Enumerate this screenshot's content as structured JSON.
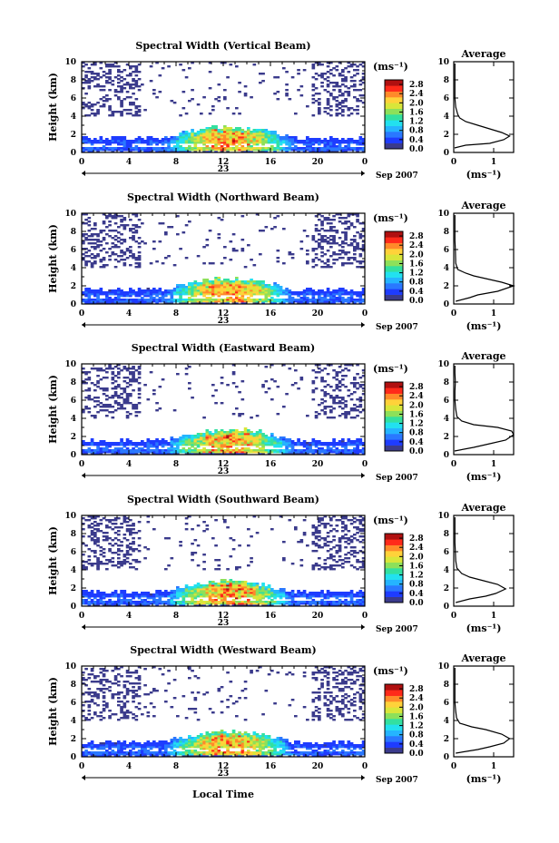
{
  "chart_data": {
    "type": "heatmap",
    "shared": {
      "xlabel": "Local Time",
      "x_ticks": [
        "0",
        "4",
        "8",
        "12",
        "16",
        "20",
        "0"
      ],
      "xlim": [
        0,
        24
      ],
      "day_label": "23",
      "month_label": "Sep 2007",
      "ylabel": "Height (km)",
      "y_ticks": [
        "0",
        "2",
        "4",
        "6",
        "8",
        "10"
      ],
      "ylim": [
        0,
        10
      ],
      "colorbar": {
        "unit_label": "(ms⁻¹)",
        "ticks": [
          "0.0",
          "0.4",
          "0.8",
          "1.2",
          "1.6",
          "2.0",
          "2.4",
          "2.8"
        ],
        "range": [
          0,
          3.0
        ],
        "colors": [
          "#3b3b8c",
          "#1e3cff",
          "#2a78ff",
          "#25b4ff",
          "#22e1ef",
          "#33e0a0",
          "#8de05a",
          "#d9e63a",
          "#ffd23a",
          "#ff8a2a",
          "#ff2a1a",
          "#b01010"
        ]
      },
      "profile_title": "Average",
      "profile_xlabel": "(ms⁻¹)",
      "profile_ylim": [
        0,
        10
      ],
      "profile_y_ticks": [
        "0",
        "2",
        "4",
        "6",
        "8",
        "10"
      ]
    },
    "panels": [
      {
        "title": "Spectral Width (Vertical Beam)",
        "profile_x_ticks": [
          "0",
          "1"
        ],
        "profile_xlim": [
          0,
          1.5
        ],
        "profile": [
          [
            0.02,
            0.5
          ],
          [
            0.3,
            0.8
          ],
          [
            0.9,
            1.0
          ],
          [
            1.25,
            1.4
          ],
          [
            1.4,
            1.8
          ],
          [
            1.2,
            2.2
          ],
          [
            0.9,
            2.6
          ],
          [
            0.6,
            3.0
          ],
          [
            0.3,
            3.4
          ],
          [
            0.15,
            3.8
          ],
          [
            0.1,
            4.2
          ],
          [
            0.05,
            5
          ],
          [
            0.03,
            6
          ],
          [
            0.03,
            7
          ],
          [
            0.03,
            8
          ],
          [
            0.03,
            9
          ],
          [
            0.03,
            9.8
          ]
        ]
      },
      {
        "title": "Spectral Width (Northward Beam)",
        "profile_x_ticks": [
          "0",
          "1"
        ],
        "profile_xlim": [
          0,
          1.5
        ],
        "profile": [
          [
            0.05,
            0.3
          ],
          [
            0.4,
            0.7
          ],
          [
            0.6,
            1.0
          ],
          [
            1.1,
            1.4
          ],
          [
            1.5,
            2.0
          ],
          [
            1.2,
            2.4
          ],
          [
            0.8,
            2.8
          ],
          [
            0.5,
            3.1
          ],
          [
            0.3,
            3.4
          ],
          [
            0.1,
            3.8
          ],
          [
            0.05,
            4.5
          ],
          [
            0.04,
            6
          ],
          [
            0.03,
            7
          ],
          [
            0.03,
            8
          ],
          [
            0.03,
            9
          ],
          [
            0.03,
            9.8
          ]
        ]
      },
      {
        "title": "Spectral Width (Eastward Beam)",
        "profile_x_ticks": [
          "0",
          "1"
        ],
        "profile_xlim": [
          0,
          1.5
        ],
        "profile": [
          [
            0.02,
            0.4
          ],
          [
            0.5,
            0.8
          ],
          [
            0.9,
            1.2
          ],
          [
            1.3,
            1.6
          ],
          [
            1.5,
            2.2
          ],
          [
            1.45,
            2.6
          ],
          [
            1.1,
            3.0
          ],
          [
            0.5,
            3.3
          ],
          [
            0.2,
            3.7
          ],
          [
            0.08,
            4.2
          ],
          [
            0.05,
            5
          ],
          [
            0.03,
            6
          ],
          [
            0.03,
            7
          ],
          [
            0.04,
            8
          ],
          [
            0.03,
            9
          ],
          [
            0.03,
            9.8
          ]
        ]
      },
      {
        "title": "Spectral Width (Southward Beam)",
        "profile_x_ticks": [
          "0",
          "1"
        ],
        "profile_xlim": [
          0,
          1.5
        ],
        "profile": [
          [
            0.05,
            0.4
          ],
          [
            0.4,
            0.8
          ],
          [
            0.8,
            1.1
          ],
          [
            1.05,
            1.4
          ],
          [
            1.3,
            1.9
          ],
          [
            1.1,
            2.4
          ],
          [
            0.75,
            2.8
          ],
          [
            0.4,
            3.2
          ],
          [
            0.2,
            3.6
          ],
          [
            0.08,
            4.2
          ],
          [
            0.05,
            5
          ],
          [
            0.04,
            6
          ],
          [
            0.03,
            7
          ],
          [
            0.03,
            8
          ],
          [
            0.03,
            9
          ],
          [
            0.03,
            9.8
          ]
        ]
      },
      {
        "title": "Spectral Width (Westward Beam)",
        "profile_x_ticks": [
          "0",
          "1"
        ],
        "profile_xlim": [
          0,
          1.5
        ],
        "profile": [
          [
            0.05,
            0.4
          ],
          [
            0.6,
            0.8
          ],
          [
            0.9,
            1.1
          ],
          [
            1.25,
            1.5
          ],
          [
            1.4,
            2.0
          ],
          [
            1.2,
            2.5
          ],
          [
            0.8,
            3.0
          ],
          [
            0.45,
            3.3
          ],
          [
            0.15,
            3.7
          ],
          [
            0.07,
            4.3
          ],
          [
            0.05,
            5
          ],
          [
            0.03,
            6
          ],
          [
            0.03,
            7
          ],
          [
            0.03,
            8
          ],
          [
            0.03,
            9
          ],
          [
            0.03,
            9.8
          ]
        ]
      }
    ]
  }
}
